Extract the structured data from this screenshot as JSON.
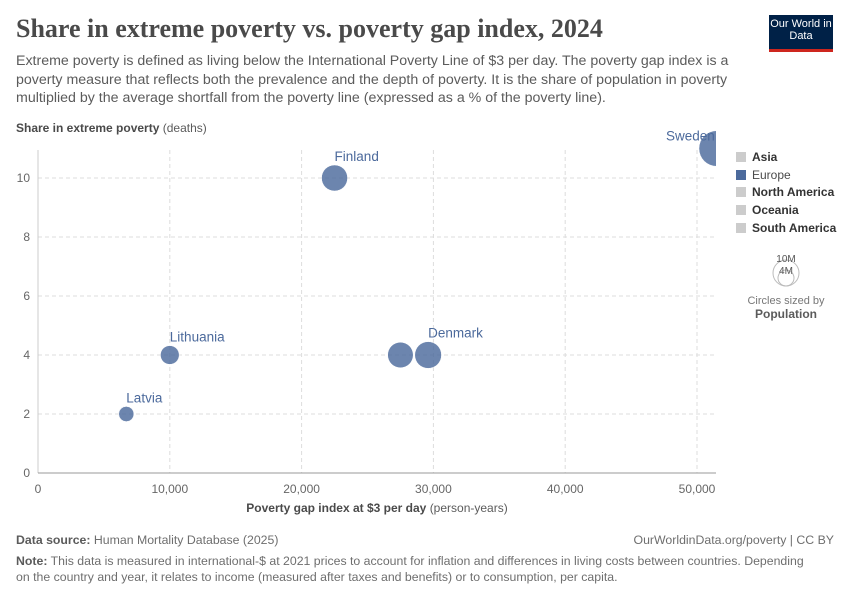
{
  "header": {
    "title": "Share in extreme poverty vs. poverty gap index, 2024",
    "subtitle": "Extreme poverty is defined as living below the International Poverty Line of $3 per day. The poverty gap index is a poverty measure that reflects both the prevalence and the depth of poverty. It is the share of population in poverty multiplied by the average shortfall from the poverty line (expressed as a % of the poverty line).",
    "logo": "Our World in Data"
  },
  "chart_data": {
    "type": "scatter",
    "title": "Share in extreme poverty vs. poverty gap index, 2024",
    "ylabel": "Share in extreme poverty",
    "ylabel_unit": "(deaths)",
    "xlabel": "Poverty gap index at $3 per day",
    "xlabel_unit": "(person-years)",
    "xlim": [
      0,
      51500
    ],
    "ylim": [
      0,
      11
    ],
    "xticks": [
      0,
      10000,
      20000,
      30000,
      40000,
      50000
    ],
    "xtick_labels": [
      "0",
      "10,000",
      "20,000",
      "30,000",
      "40,000",
      "50,000"
    ],
    "yticks": [
      0,
      2,
      4,
      6,
      8,
      10
    ],
    "ytick_labels": [
      "0",
      "2",
      "4",
      "6",
      "8",
      "10"
    ],
    "grid": true,
    "legend_position": "right",
    "points": [
      {
        "name": "Sweden",
        "x": 51500,
        "y": 11,
        "size": 10.5,
        "continent": "Europe"
      },
      {
        "name": "Finland",
        "x": 22500,
        "y": 10,
        "size": 5.6,
        "continent": "Europe"
      },
      {
        "name": "Denmark",
        "x": 29600,
        "y": 4,
        "size": 5.9,
        "continent": "Europe"
      },
      {
        "name": "",
        "x": 27500,
        "y": 4,
        "size": 5.4,
        "continent": "Europe"
      },
      {
        "name": "Lithuania",
        "x": 10000,
        "y": 4,
        "size": 2.9,
        "continent": "Europe"
      },
      {
        "name": "Latvia",
        "x": 6700,
        "y": 2,
        "size": 1.9,
        "continent": "Europe"
      }
    ],
    "legend": [
      {
        "label": "Asia",
        "color": "#cccccc"
      },
      {
        "label": "Europe",
        "color": "#4c6a9c"
      },
      {
        "label": "North America",
        "color": "#cccccc"
      },
      {
        "label": "Oceania",
        "color": "#cccccc"
      },
      {
        "label": "South America",
        "color": "#cccccc"
      }
    ],
    "size_legend": {
      "large": "10M",
      "small": "4M",
      "caption": "Circles sized by",
      "variable": "Population"
    }
  },
  "footer": {
    "source_label": "Data source:",
    "source": "Human Mortality Database (2025)",
    "url": "OurWorldinData.org/poverty | CC BY",
    "note_label": "Note:",
    "note": "This data is measured in international-$ at 2021 prices to account for inflation and differences in living costs between countries. Depending on the country and year, it relates to income (measured after taxes and benefits) or to consumption, per capita."
  }
}
